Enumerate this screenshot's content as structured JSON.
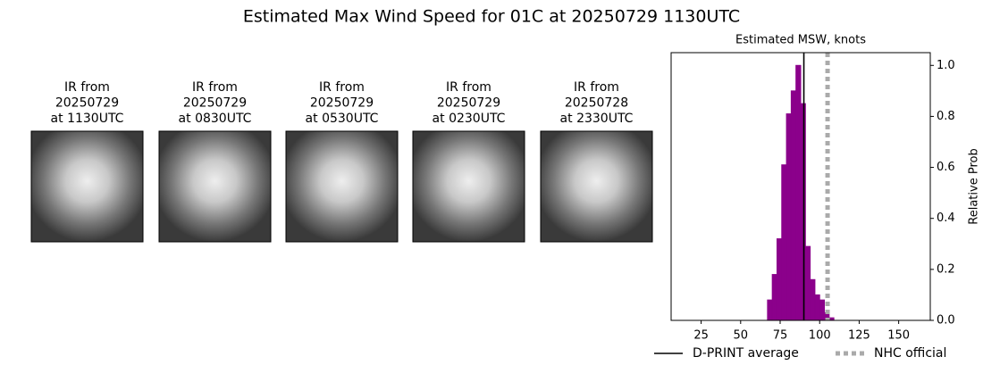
{
  "title": "Estimated Max Wind Speed for 01C at 20250729 1130UTC",
  "panels": [
    {
      "title": [
        "IR from",
        "20250729",
        "at 1130UTC"
      ]
    },
    {
      "title": [
        "IR from",
        "20250729",
        "at 0830UTC"
      ]
    },
    {
      "title": [
        "IR from",
        "20250729",
        "at 0530UTC"
      ]
    },
    {
      "title": [
        "IR from",
        "20250729",
        "at 0230UTC"
      ]
    },
    {
      "title": [
        "IR from",
        "20250728",
        "at 2330UTC"
      ]
    }
  ],
  "chart_data": {
    "type": "histogram",
    "title": "Estimated MSW, knots",
    "ylabel": "Relative Prob",
    "yaxis_side": "right",
    "color": "#8b008b",
    "bins": [
      16,
      19,
      22,
      25,
      28,
      31,
      34,
      37,
      40,
      43,
      46,
      49,
      52,
      55,
      58,
      61,
      64,
      67,
      70,
      73,
      76,
      79,
      82,
      85,
      88,
      91,
      94,
      97,
      100,
      103,
      106,
      109,
      112,
      115,
      118,
      121,
      124,
      127,
      130,
      133,
      136,
      139,
      142,
      145,
      148,
      151,
      154,
      157,
      160,
      163,
      166,
      169
    ],
    "values": [
      0,
      0,
      0,
      0,
      0,
      0,
      0,
      0,
      0,
      0,
      0,
      0,
      0,
      0,
      0,
      0,
      0,
      0.08,
      0.18,
      0.32,
      0.61,
      0.81,
      0.9,
      1.0,
      0.85,
      0.29,
      0.16,
      0.1,
      0.08,
      0.03,
      0.01,
      0,
      0,
      0,
      0,
      0,
      0,
      0,
      0,
      0,
      0,
      0,
      0,
      0,
      0,
      0,
      0,
      0,
      0,
      0,
      0
    ],
    "xlim": [
      6,
      170
    ],
    "xticks": [
      25,
      50,
      75,
      100,
      125,
      150
    ],
    "ylim": [
      0,
      1.05
    ],
    "yticks": [
      {
        "value": 0,
        "label": "0.0"
      },
      0.2,
      0.4,
      0.6,
      0.8,
      {
        "value": 1,
        "label": "1.0"
      }
    ],
    "reference_lines": [
      {
        "name": "D-PRINT average",
        "value": 90,
        "color": "#000000",
        "style": "solid"
      },
      {
        "name": "NHC official",
        "value": 105,
        "color": "#aaaaaa",
        "style": "dotted"
      }
    ]
  }
}
